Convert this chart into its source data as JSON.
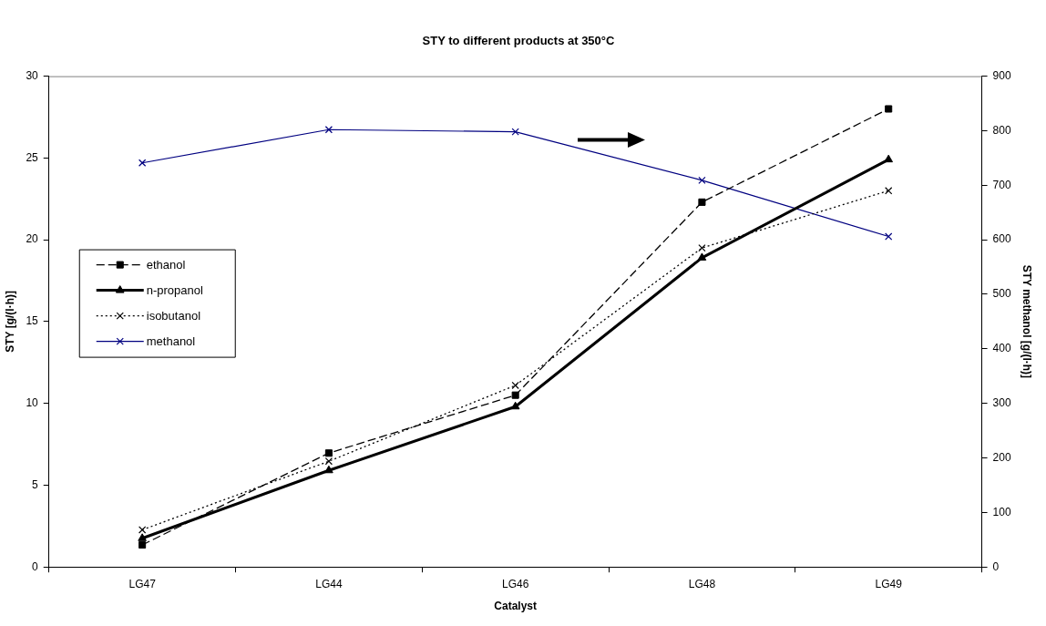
{
  "chart_data": {
    "type": "line",
    "title": "STY to different products at 350°C",
    "xlabel": "Catalyst",
    "ylabel": "STY [g/(l·h)]",
    "y2label": "STY methanol [g/(l·h)]",
    "categories": [
      "LG47",
      "LG44",
      "LG46",
      "LG48",
      "LG49"
    ],
    "series": [
      {
        "name": "ethanol",
        "color": "#000000",
        "marker": "square",
        "line_style": "dashed",
        "values": [
          1.35,
          6.96,
          10.5,
          22.3,
          28.0
        ]
      },
      {
        "name": "n-propanol",
        "color": "#000000",
        "marker": "triangle",
        "line_style": "solid",
        "values": [
          1.75,
          5.9,
          9.8,
          18.9,
          24.9
        ]
      },
      {
        "name": "isobutanol",
        "color": "#000000",
        "marker": "cross",
        "line_style": "dotted",
        "values": [
          2.27,
          6.46,
          11.1,
          19.5,
          23.0
        ]
      },
      {
        "name": "methanol",
        "color": "#000080",
        "marker": "cross",
        "line_style": "solid",
        "axis": "y2",
        "values": [
          741,
          802,
          798,
          709,
          606
        ]
      }
    ],
    "ylim": [
      0,
      30
    ],
    "yticks": [
      0,
      5,
      10,
      15,
      20,
      25,
      30
    ],
    "y2lim": [
      0,
      900
    ],
    "y2ticks": [
      0,
      100,
      200,
      300,
      400,
      500,
      600,
      700,
      800,
      900
    ],
    "grid": false,
    "legend": "left"
  }
}
